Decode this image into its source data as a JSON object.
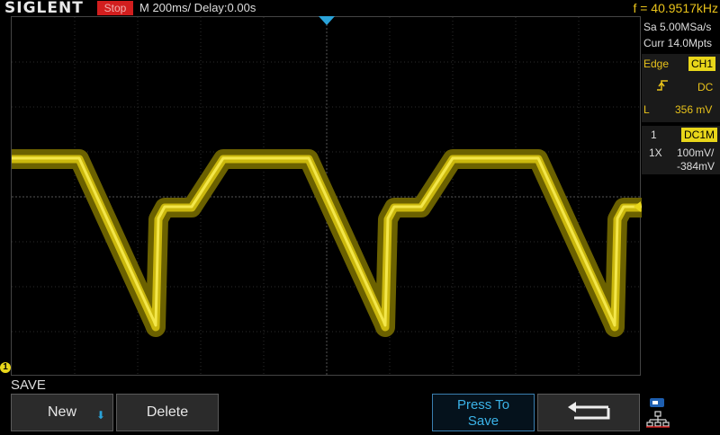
{
  "header": {
    "brand": "SIGLENT",
    "run_state": "Stop",
    "timebase": "M 200ms/  Delay:0.00s",
    "frequency": "f = 40.9517kHz"
  },
  "acquisition": {
    "sample_rate": "Sa 5.00MSa/s",
    "memory_depth": "Curr 14.0Mpts"
  },
  "trigger": {
    "type": "Edge",
    "source": "CH1",
    "slope_icon": "rising-edge-icon",
    "coupling": "DC",
    "level_label": "L",
    "level": "356 mV"
  },
  "channel": {
    "number": "1",
    "coupling": "DC1M",
    "probe": "1X",
    "scale": "100mV/",
    "offset": "-384mV",
    "marker": "1"
  },
  "menu": {
    "title": "SAVE",
    "softkeys": {
      "new": "New",
      "delete": "Delete",
      "press_to_save_1": "Press To",
      "press_to_save_2": "Save",
      "back_icon": "return-arrow-icon",
      "net_icon": "network-usb-icon"
    }
  },
  "colors": {
    "trace": "#e8d61a",
    "trigger_marker": "#2aa3d9",
    "run_state": "#d21e1e"
  }
}
